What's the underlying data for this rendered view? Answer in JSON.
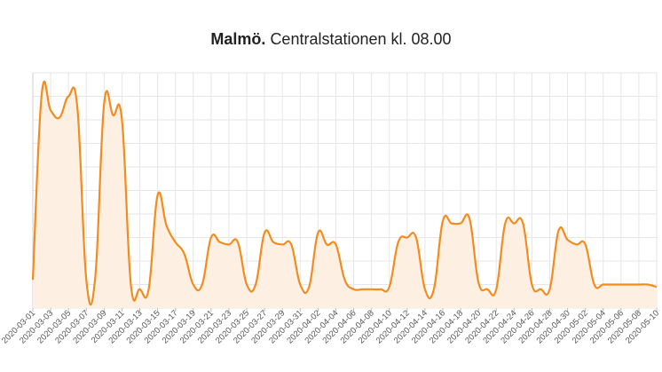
{
  "chart_data": {
    "type": "area",
    "title_bold": "Malmö.",
    "title_rest": "Centralstationen kl. 08.00",
    "xlabel": "",
    "ylabel": "",
    "ylim": [
      0,
      100
    ],
    "grid": true,
    "legend": "none",
    "colors": {
      "line": "#f28c1e",
      "fill": "#fdf0e3",
      "grid": "#e6e6e6"
    },
    "x_tick_labels": [
      "2020-03-01",
      "2020-03-03",
      "2020-03-05",
      "2020-03-07",
      "2020-03-09",
      "2020-03-11",
      "2020-03-13",
      "2020-03-15",
      "2020-03-17",
      "2020-03-19",
      "2020-03-21",
      "2020-03-23",
      "2020-03-25",
      "2020-03-27",
      "2020-03-29",
      "2020-03-31",
      "2020-04-02",
      "2020-04-04",
      "2020-04-06",
      "2020-04-08",
      "2020-04-10",
      "2020-04-12",
      "2020-04-14",
      "2020-04-16",
      "2020-04-18",
      "2020-04-20",
      "2020-04-22",
      "2020-04-24",
      "2020-04-26",
      "2020-04-28",
      "2020-04-30",
      "2020-05-02",
      "2020-05-04",
      "2020-05-06",
      "2020-05-08",
      "2020-05-10"
    ],
    "x": [
      0,
      1,
      2,
      3,
      4,
      5,
      6,
      7,
      8,
      9,
      10,
      11,
      12,
      13,
      14,
      15,
      16,
      17,
      18,
      19,
      20,
      21,
      22,
      23,
      24,
      25,
      26,
      27,
      28,
      29,
      30,
      31,
      32,
      33,
      34,
      35,
      36,
      37,
      38,
      39,
      40,
      41,
      42,
      43,
      44,
      45,
      46,
      47,
      48,
      49,
      50,
      51,
      52,
      53,
      54,
      55,
      56,
      57,
      58,
      59,
      60,
      61,
      62,
      63,
      64,
      65,
      66,
      67,
      68,
      69,
      70
    ],
    "values": [
      12,
      91,
      84,
      81,
      90,
      85,
      12,
      13,
      87,
      82,
      80,
      10,
      8,
      8,
      48,
      35,
      28,
      23,
      10,
      10,
      30,
      28,
      27,
      28,
      10,
      10,
      32,
      28,
      27,
      27,
      10,
      9,
      32,
      27,
      27,
      12,
      8,
      8,
      8,
      8,
      9,
      28,
      30,
      30,
      8,
      8,
      37,
      36,
      36,
      38,
      11,
      8,
      8,
      36,
      36,
      36,
      10,
      8,
      8,
      33,
      29,
      27,
      27,
      10,
      10,
      10,
      10,
      10,
      10,
      10,
      9
    ]
  }
}
